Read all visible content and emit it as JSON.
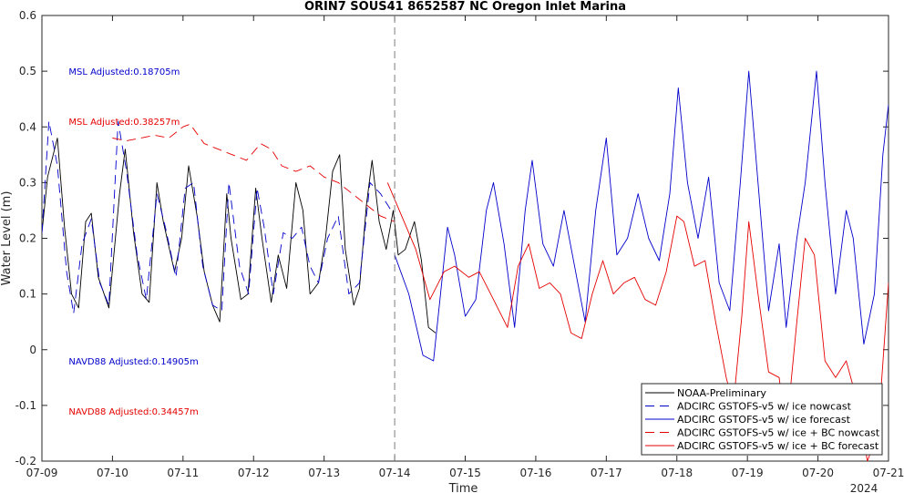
{
  "chart_data": {
    "type": "line",
    "title": "ORIN7 SOUS41 8652587 NC Oregon Inlet Marina",
    "xlabel": "Time",
    "ylabel": "Water Level (m)",
    "year_label": "2024",
    "xlim": [
      0,
      12
    ],
    "ylim": [
      -0.2,
      0.6
    ],
    "x_ticks": [
      0,
      1,
      2,
      3,
      4,
      5,
      6,
      7,
      8,
      9,
      10,
      11,
      12
    ],
    "x_tick_labels": [
      "07-09",
      "07-10",
      "07-11",
      "07-12",
      "07-13",
      "07-14",
      "07-15",
      "07-16",
      "07-17",
      "07-18",
      "07-19",
      "07-20",
      "07-21"
    ],
    "y_ticks": [
      -0.2,
      -0.1,
      0,
      0.1,
      0.2,
      0.3,
      0.4,
      0.5,
      0.6
    ],
    "y_tick_labels": [
      "-0.2",
      "-0.1",
      "0",
      "0.1",
      "0.2",
      "0.3",
      "0.4",
      "0.5",
      "0.6"
    ],
    "nowcast_forecast_divider_x": 5,
    "annotations": [
      {
        "text": "MSL Adjusted:0.18705m",
        "x": 0.38,
        "y": 0.5,
        "color": "#0000cc"
      },
      {
        "text": "MSL Adjusted:0.38257m",
        "x": 0.38,
        "y": 0.41,
        "color": "#e60000"
      },
      {
        "text": "NAVD88 Adjusted:0.14905m",
        "x": 0.38,
        "y": -0.02,
        "color": "#0000cc"
      },
      {
        "text": "NAVD88 Adjusted:0.34457m",
        "x": 0.38,
        "y": -0.11,
        "color": "#e60000"
      }
    ],
    "legend_position": "bottom-right",
    "series": [
      {
        "name": "NOAA-Preliminary",
        "color": "#000000",
        "dash": "solid",
        "points": [
          [
            0,
            0.21
          ],
          [
            0.08,
            0.31
          ],
          [
            0.22,
            0.38
          ],
          [
            0.32,
            0.22
          ],
          [
            0.42,
            0.1
          ],
          [
            0.52,
            0.075
          ],
          [
            0.62,
            0.23
          ],
          [
            0.7,
            0.245
          ],
          [
            0.8,
            0.13
          ],
          [
            0.95,
            0.075
          ],
          [
            1.1,
            0.28
          ],
          [
            1.18,
            0.36
          ],
          [
            1.3,
            0.21
          ],
          [
            1.42,
            0.1
          ],
          [
            1.52,
            0.085
          ],
          [
            1.63,
            0.3
          ],
          [
            1.72,
            0.23
          ],
          [
            1.88,
            0.14
          ],
          [
            1.98,
            0.2
          ],
          [
            2.08,
            0.33
          ],
          [
            2.2,
            0.24
          ],
          [
            2.3,
            0.14
          ],
          [
            2.42,
            0.08
          ],
          [
            2.52,
            0.05
          ],
          [
            2.62,
            0.28
          ],
          [
            2.68,
            0.2
          ],
          [
            2.82,
            0.09
          ],
          [
            2.92,
            0.1
          ],
          [
            3.03,
            0.29
          ],
          [
            3.12,
            0.2
          ],
          [
            3.25,
            0.085
          ],
          [
            3.35,
            0.17
          ],
          [
            3.47,
            0.11
          ],
          [
            3.6,
            0.3
          ],
          [
            3.7,
            0.25
          ],
          [
            3.8,
            0.1
          ],
          [
            3.92,
            0.12
          ],
          [
            4.02,
            0.2
          ],
          [
            4.12,
            0.32
          ],
          [
            4.22,
            0.35
          ],
          [
            4.3,
            0.18
          ],
          [
            4.42,
            0.08
          ],
          [
            4.5,
            0.11
          ],
          [
            4.6,
            0.26
          ],
          [
            4.68,
            0.34
          ],
          [
            4.78,
            0.23
          ],
          [
            4.88,
            0.18
          ],
          [
            4.98,
            0.25
          ],
          [
            5.05,
            0.17
          ],
          [
            5.15,
            0.18
          ],
          [
            5.28,
            0.23
          ],
          [
            5.38,
            0.16
          ],
          [
            5.48,
            0.04
          ],
          [
            5.58,
            0.03
          ]
        ]
      },
      {
        "name": "ADCIRC GSTOFS-v5 w/ ice nowcast",
        "color": "#0000cc",
        "dash": "dashed",
        "points": [
          [
            0,
            0.21
          ],
          [
            0.1,
            0.41
          ],
          [
            0.22,
            0.33
          ],
          [
            0.35,
            0.14
          ],
          [
            0.45,
            0.065
          ],
          [
            0.57,
            0.19
          ],
          [
            0.7,
            0.235
          ],
          [
            0.82,
            0.12
          ],
          [
            0.95,
            0.08
          ],
          [
            1.08,
            0.41
          ],
          [
            1.2,
            0.32
          ],
          [
            1.35,
            0.17
          ],
          [
            1.48,
            0.09
          ],
          [
            1.63,
            0.28
          ],
          [
            1.75,
            0.22
          ],
          [
            1.9,
            0.13
          ],
          [
            2.03,
            0.29
          ],
          [
            2.15,
            0.3
          ],
          [
            2.28,
            0.15
          ],
          [
            2.42,
            0.08
          ],
          [
            2.55,
            0.07
          ],
          [
            2.65,
            0.3
          ],
          [
            2.8,
            0.15
          ],
          [
            2.93,
            0.1
          ],
          [
            3.05,
            0.29
          ],
          [
            3.15,
            0.22
          ],
          [
            3.28,
            0.1
          ],
          [
            3.42,
            0.21
          ],
          [
            3.55,
            0.2
          ],
          [
            3.68,
            0.22
          ],
          [
            3.8,
            0.15
          ],
          [
            3.92,
            0.12
          ],
          [
            4.05,
            0.2
          ],
          [
            4.2,
            0.24
          ],
          [
            4.35,
            0.1
          ],
          [
            4.5,
            0.12
          ],
          [
            4.65,
            0.3
          ],
          [
            4.8,
            0.28
          ],
          [
            4.95,
            0.25
          ]
        ]
      },
      {
        "name": "ADCIRC GSTOFS-v5 w/ ice forecast",
        "color": "#0000cc",
        "dash": "solid",
        "points": [
          [
            5,
            0.17
          ],
          [
            5.2,
            0.1
          ],
          [
            5.4,
            -0.01
          ],
          [
            5.55,
            -0.02
          ],
          [
            5.75,
            0.22
          ],
          [
            5.85,
            0.17
          ],
          [
            6,
            0.06
          ],
          [
            6.15,
            0.09
          ],
          [
            6.3,
            0.25
          ],
          [
            6.4,
            0.3
          ],
          [
            6.55,
            0.19
          ],
          [
            6.7,
            0.04
          ],
          [
            6.85,
            0.25
          ],
          [
            6.95,
            0.34
          ],
          [
            7.1,
            0.19
          ],
          [
            7.25,
            0.15
          ],
          [
            7.4,
            0.25
          ],
          [
            7.55,
            0.15
          ],
          [
            7.7,
            0.05
          ],
          [
            7.85,
            0.25
          ],
          [
            8,
            0.38
          ],
          [
            8.15,
            0.17
          ],
          [
            8.3,
            0.2
          ],
          [
            8.45,
            0.28
          ],
          [
            8.6,
            0.2
          ],
          [
            8.75,
            0.16
          ],
          [
            8.9,
            0.28
          ],
          [
            9.02,
            0.47
          ],
          [
            9.15,
            0.3
          ],
          [
            9.3,
            0.2
          ],
          [
            9.45,
            0.31
          ],
          [
            9.6,
            0.12
          ],
          [
            9.75,
            0.07
          ],
          [
            9.9,
            0.3
          ],
          [
            10.02,
            0.5
          ],
          [
            10.15,
            0.3
          ],
          [
            10.3,
            0.07
          ],
          [
            10.45,
            0.19
          ],
          [
            10.55,
            0.04
          ],
          [
            10.7,
            0.2
          ],
          [
            10.82,
            0.3
          ],
          [
            10.98,
            0.5
          ],
          [
            11.1,
            0.3
          ],
          [
            11.25,
            0.1
          ],
          [
            11.4,
            0.25
          ],
          [
            11.5,
            0.2
          ],
          [
            11.65,
            0.01
          ],
          [
            11.8,
            0.1
          ],
          [
            11.92,
            0.35
          ],
          [
            12,
            0.44
          ]
        ]
      },
      {
        "name": "ADCIRC GSTOFS-v5 w/ ice + BC nowcast",
        "color": "#e60000",
        "dash": "dashed",
        "points": [
          [
            1,
            0.38
          ],
          [
            1.2,
            0.375
          ],
          [
            1.4,
            0.38
          ],
          [
            1.6,
            0.385
          ],
          [
            1.8,
            0.38
          ],
          [
            2,
            0.4
          ],
          [
            2.1,
            0.405
          ],
          [
            2.3,
            0.37
          ],
          [
            2.5,
            0.36
          ],
          [
            2.7,
            0.35
          ],
          [
            2.9,
            0.34
          ],
          [
            3.1,
            0.37
          ],
          [
            3.25,
            0.36
          ],
          [
            3.4,
            0.33
          ],
          [
            3.6,
            0.32
          ],
          [
            3.8,
            0.33
          ],
          [
            4.0,
            0.31
          ],
          [
            4.2,
            0.3
          ],
          [
            4.4,
            0.28
          ],
          [
            4.6,
            0.26
          ],
          [
            4.8,
            0.24
          ],
          [
            5,
            0.23
          ]
        ]
      },
      {
        "name": "ADCIRC GSTOFS-v5 w/ ice + BC forecast",
        "color": "#e60000",
        "dash": "solid",
        "points": [
          [
            4.9,
            0.3
          ],
          [
            5.1,
            0.24
          ],
          [
            5.3,
            0.18
          ],
          [
            5.5,
            0.09
          ],
          [
            5.7,
            0.14
          ],
          [
            5.85,
            0.15
          ],
          [
            6.05,
            0.13
          ],
          [
            6.2,
            0.14
          ],
          [
            6.4,
            0.09
          ],
          [
            6.6,
            0.04
          ],
          [
            6.75,
            0.15
          ],
          [
            6.9,
            0.19
          ],
          [
            7.05,
            0.11
          ],
          [
            7.2,
            0.12
          ],
          [
            7.35,
            0.1
          ],
          [
            7.5,
            0.03
          ],
          [
            7.65,
            0.02
          ],
          [
            7.8,
            0.1
          ],
          [
            7.95,
            0.16
          ],
          [
            8.1,
            0.1
          ],
          [
            8.25,
            0.12
          ],
          [
            8.4,
            0.13
          ],
          [
            8.55,
            0.09
          ],
          [
            8.7,
            0.08
          ],
          [
            8.85,
            0.14
          ],
          [
            9.0,
            0.24
          ],
          [
            9.1,
            0.23
          ],
          [
            9.25,
            0.15
          ],
          [
            9.4,
            0.16
          ],
          [
            9.55,
            0.05
          ],
          [
            9.7,
            -0.05
          ],
          [
            9.8,
            -0.1
          ],
          [
            9.92,
            0.06
          ],
          [
            10.02,
            0.23
          ],
          [
            10.15,
            0.1
          ],
          [
            10.3,
            -0.04
          ],
          [
            10.45,
            -0.05
          ],
          [
            10.55,
            -0.15
          ],
          [
            10.7,
            0.05
          ],
          [
            10.82,
            0.2
          ],
          [
            10.95,
            0.17
          ],
          [
            11.1,
            -0.02
          ],
          [
            11.25,
            -0.05
          ],
          [
            11.4,
            -0.02
          ],
          [
            11.55,
            -0.09
          ],
          [
            11.7,
            -0.2
          ],
          [
            11.85,
            -0.15
          ],
          [
            12,
            0.12
          ]
        ]
      }
    ]
  }
}
